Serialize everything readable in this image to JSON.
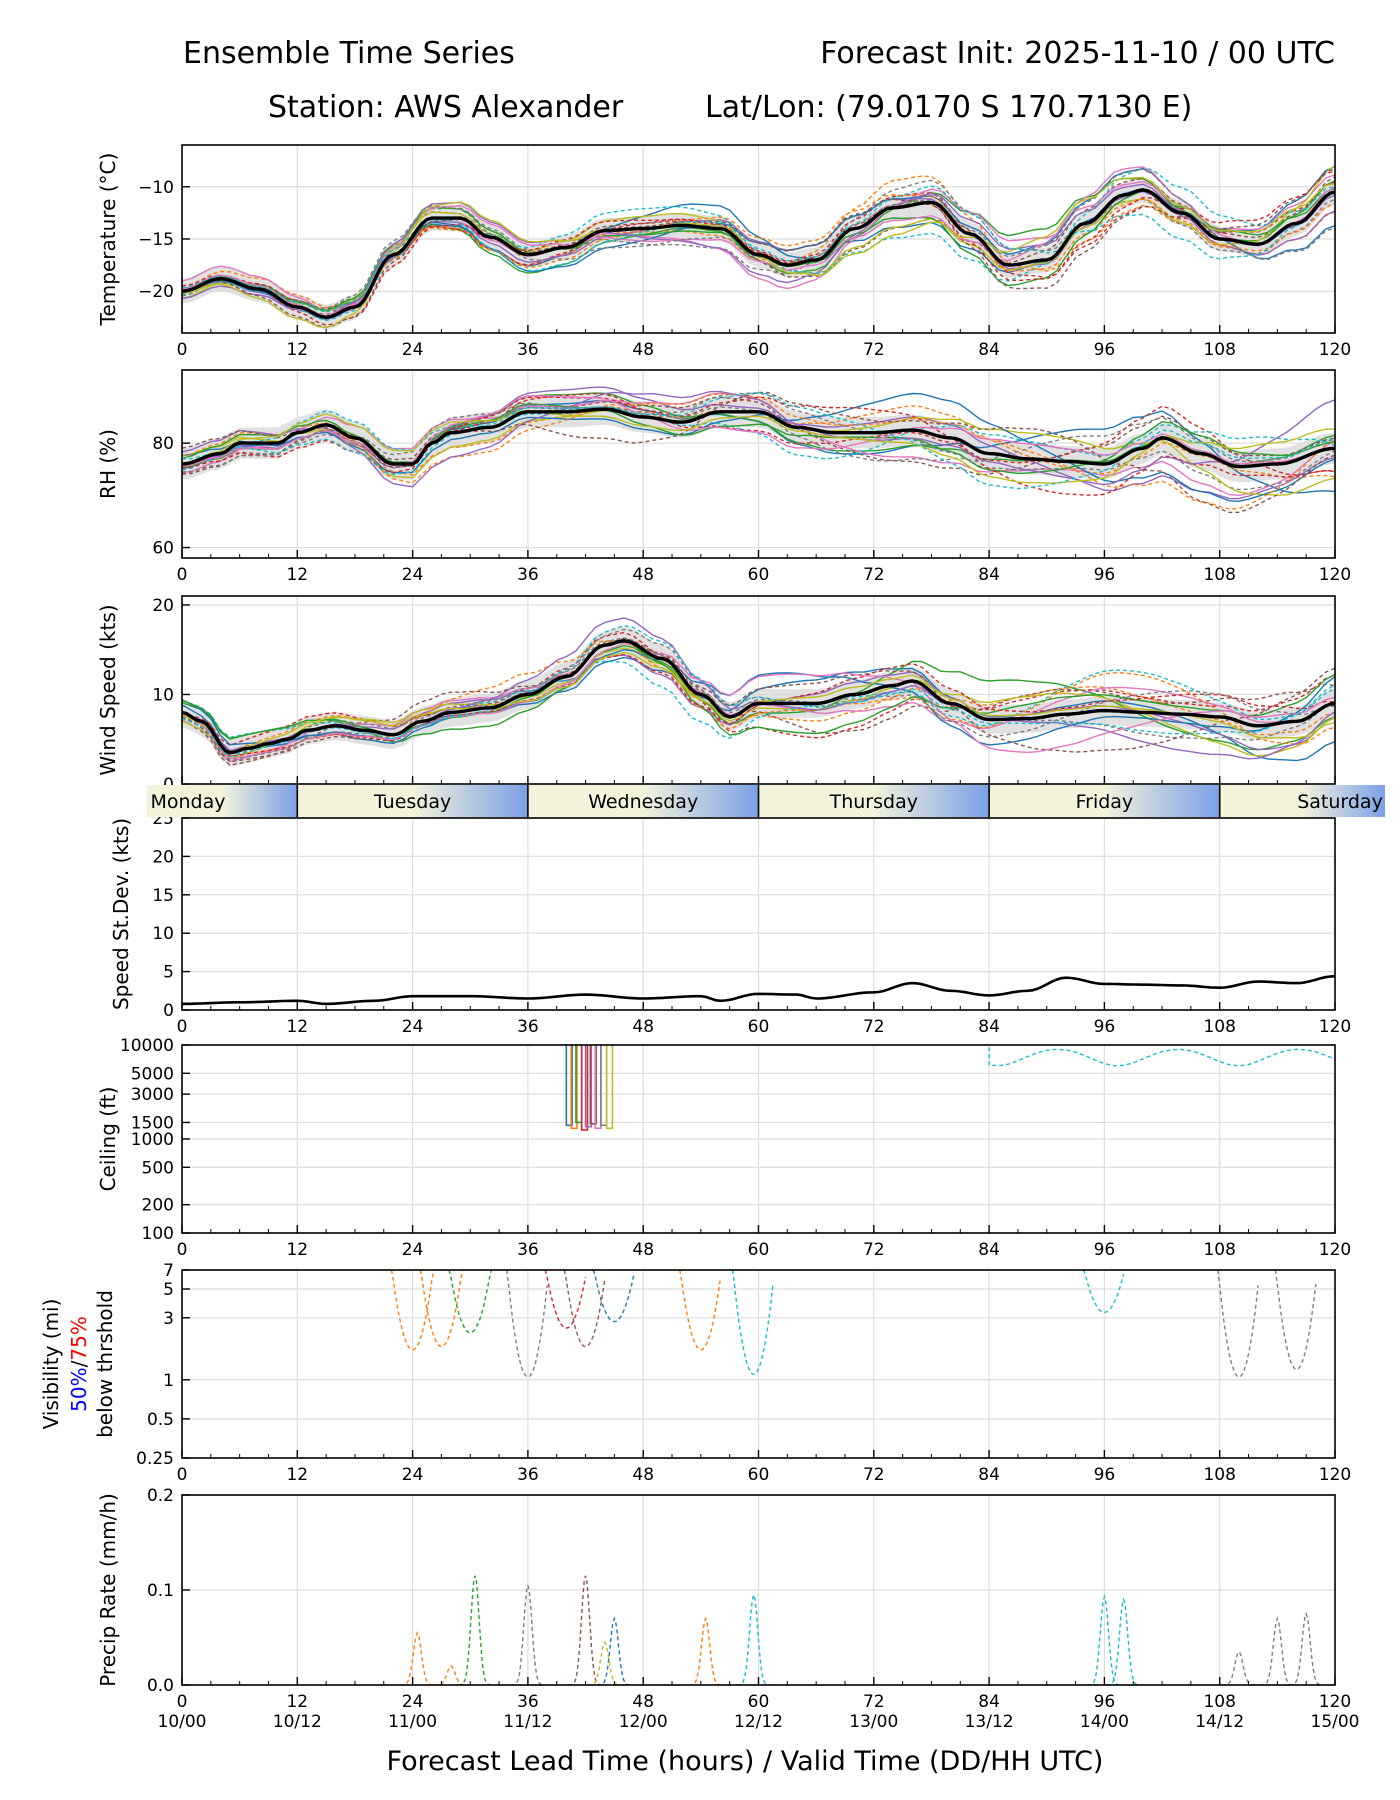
{
  "header": {
    "title_left": "Ensemble Time Series",
    "title_right": "Forecast Init: 2025-11-10 / 00 UTC",
    "station": "Station: AWS Alexander",
    "latlon": "Lat/Lon: (79.0170 S 170.7130 E)"
  },
  "xaxis": {
    "ticks": [
      0,
      12,
      24,
      36,
      48,
      60,
      72,
      84,
      96,
      108,
      120
    ],
    "tick_labels": [
      "0",
      "12",
      "24",
      "36",
      "48",
      "60",
      "72",
      "84",
      "96",
      "108",
      "120"
    ],
    "valid_labels": [
      "10/00",
      "10/12",
      "11/00",
      "11/12",
      "12/00",
      "12/12",
      "13/00",
      "13/12",
      "14/00",
      "14/12",
      "15/00"
    ],
    "xlabel": "Forecast Lead Time (hours) / Valid Time (DD/HH UTC)",
    "range": [
      0,
      120
    ]
  },
  "daybar": {
    "days": [
      "Monday",
      "Tuesday",
      "Wednesday",
      "Thursday",
      "Friday",
      "Saturday"
    ]
  },
  "colors": {
    "mean": "#000000",
    "spread": "#d9d9d9",
    "grid": "#dddddd",
    "daybar_light": "#f3f3dc",
    "daybar_dark": "#7aa0e6",
    "fifty": "#0000ff",
    "seventy_five": "#ff0000",
    "members": [
      "#1f77b4",
      "#ff7f0e",
      "#2ca02c",
      "#d62728",
      "#9467bd",
      "#8c564b",
      "#e377c2",
      "#7f7f7f",
      "#bcbd22",
      "#17becf"
    ]
  },
  "chart_data": [
    {
      "type": "line",
      "id": "temperature",
      "ylabel": "Temperature (°C)",
      "ylim": [
        -24,
        -6
      ],
      "yticks": [
        -20,
        -15,
        -10
      ],
      "ytick_labels": [
        "−20",
        "−15",
        "−10"
      ],
      "mean": {
        "x": [
          0,
          4,
          8,
          12,
          15,
          18,
          22,
          26,
          29,
          32,
          36,
          40,
          44,
          48,
          52,
          56,
          60,
          63,
          66,
          70,
          74,
          78,
          82,
          86,
          90,
          94,
          98,
          100,
          104,
          108,
          112,
          116,
          120
        ],
        "y": [
          -20,
          -18.8,
          -19.8,
          -21.5,
          -22.5,
          -21.5,
          -16.5,
          -13.0,
          -13.0,
          -14.8,
          -16.5,
          -15.8,
          -14.2,
          -14.0,
          -13.7,
          -14.0,
          -16.5,
          -17.5,
          -17.0,
          -14.0,
          -12.0,
          -11.5,
          -14.5,
          -17.5,
          -17.0,
          -13.5,
          -10.8,
          -10.3,
          -12.5,
          -15.0,
          -15.5,
          -13.5,
          -10.5
        ]
      },
      "spread_half_width": 1.2
    },
    {
      "type": "line",
      "id": "rh",
      "ylabel": "RH (%)",
      "ylim": [
        58,
        94
      ],
      "yticks": [
        60,
        80
      ],
      "ytick_labels": [
        "60",
        "80"
      ],
      "mean": {
        "x": [
          0,
          4,
          6,
          10,
          12,
          15,
          18,
          22,
          24,
          26,
          28,
          32,
          36,
          40,
          44,
          48,
          52,
          56,
          60,
          64,
          68,
          72,
          76,
          80,
          84,
          88,
          92,
          96,
          100,
          102,
          106,
          110,
          114,
          120
        ],
        "y": [
          76,
          78,
          80,
          80,
          82,
          83.5,
          81,
          76,
          76,
          80,
          82,
          83,
          86,
          86,
          86.5,
          85,
          84,
          86,
          86,
          83,
          82,
          82,
          82.5,
          81,
          78,
          77,
          76.5,
          76,
          79,
          81,
          78,
          75.5,
          76,
          79
        ]
      },
      "spread_half_width": 3.0
    },
    {
      "type": "line",
      "id": "wind_speed",
      "ylabel": "Wind Speed (kts)",
      "ylim": [
        0,
        21
      ],
      "yticks": [
        0,
        10,
        20
      ],
      "ytick_labels": [
        "0",
        "10",
        "20"
      ],
      "mean": {
        "x": [
          0,
          2,
          5,
          7,
          9,
          11,
          13,
          16,
          19,
          22,
          25,
          28,
          32,
          36,
          40,
          44,
          46,
          50,
          54,
          57,
          60,
          62,
          66,
          70,
          74,
          76,
          80,
          84,
          88,
          92,
          96,
          100,
          104,
          108,
          112,
          116,
          120
        ],
        "y": [
          8,
          7,
          3.5,
          4,
          4.5,
          5,
          6,
          6.5,
          6,
          5.5,
          7,
          8,
          8.5,
          10,
          12,
          15.5,
          16,
          14,
          10,
          7.5,
          9,
          9,
          9,
          10,
          11,
          11.5,
          9,
          7.2,
          7.3,
          7.8,
          8.2,
          8,
          7.8,
          7.5,
          6.5,
          7,
          9
        ]
      },
      "spread_half_width": 1.6
    },
    {
      "type": "line",
      "id": "speed_stdev",
      "ylabel": "Speed St.Dev. (kts)",
      "ylim": [
        0,
        25
      ],
      "yticks": [
        0,
        5,
        10,
        15,
        20,
        25
      ],
      "ytick_labels": [
        "0",
        "5",
        "10",
        "15",
        "20",
        "25"
      ],
      "mean": {
        "x": [
          0,
          6,
          12,
          15,
          20,
          24,
          30,
          36,
          42,
          48,
          54,
          56,
          60,
          64,
          66,
          72,
          76,
          80,
          84,
          88,
          92,
          96,
          100,
          104,
          108,
          112,
          116,
          120
        ],
        "y": [
          0.8,
          1.0,
          1.2,
          0.8,
          1.2,
          1.8,
          1.8,
          1.5,
          2.0,
          1.5,
          1.8,
          1.2,
          2.1,
          2.0,
          1.5,
          2.3,
          3.5,
          2.5,
          1.9,
          2.5,
          4.2,
          3.4,
          3.3,
          3.2,
          2.9,
          3.7,
          3.5,
          4.4
        ]
      }
    },
    {
      "type": "line",
      "id": "ceiling",
      "ylabel": "Ceiling (ft)",
      "scale": "log",
      "ylim": [
        100,
        10000
      ],
      "yticks": [
        100,
        200,
        500,
        1000,
        1500,
        3000,
        5000,
        10000
      ],
      "ytick_labels": [
        "100",
        "200",
        "500",
        "1000",
        "1500",
        "3000",
        "5000",
        "10000"
      ]
    },
    {
      "type": "line",
      "id": "visibility",
      "ylabel": "Visibility (mi)",
      "ylabel_50": "50%",
      "ylabel_sep": "/",
      "ylabel_75": "75%",
      "ylabel_3": "below thrshold",
      "scale": "log",
      "ylim": [
        0.25,
        7
      ],
      "yticks": [
        0.25,
        0.5,
        1,
        3,
        5,
        7
      ],
      "ytick_labels": [
        "0.25",
        "0.5",
        "1",
        "3",
        "5",
        "7"
      ]
    },
    {
      "type": "line",
      "id": "precip",
      "ylabel": "Precip Rate (mm/h)",
      "ylim": [
        0,
        0.2
      ],
      "yticks": [
        0,
        0.1,
        0.2
      ],
      "ytick_labels": [
        "0.0",
        "0.1",
        "0.2"
      ]
    }
  ]
}
